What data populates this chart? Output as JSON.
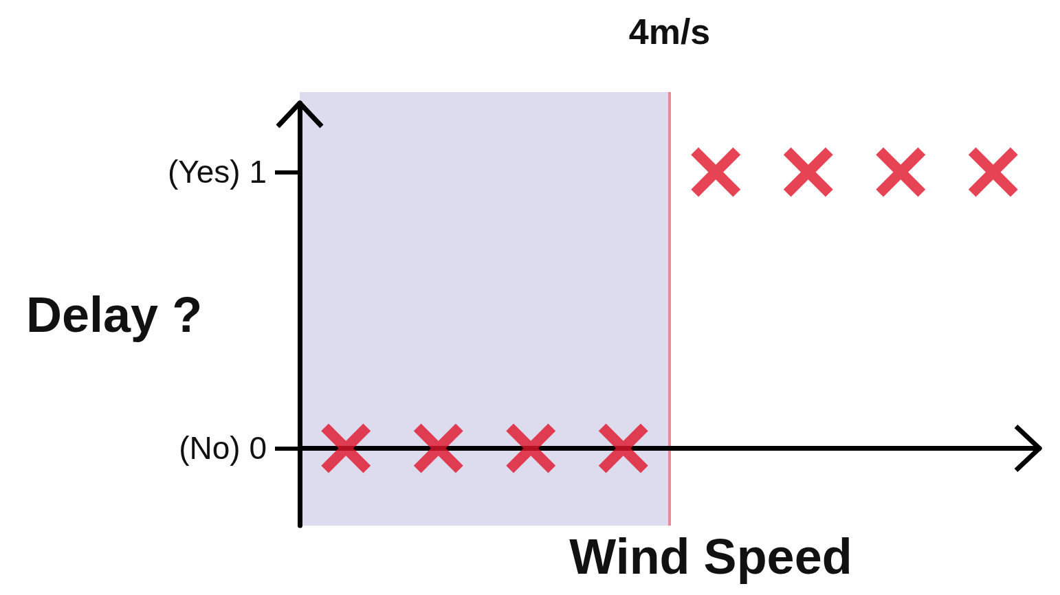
{
  "chart_data": {
    "type": "scatter",
    "xlabel": "Wind Speed",
    "ylabel": "Delay ?",
    "categories": [
      null,
      null,
      null,
      null,
      null,
      null,
      null,
      null
    ],
    "series": [
      {
        "color": "#e0142a",
        "values": [
          0,
          0,
          0,
          0,
          1,
          1,
          1,
          1
        ]
      }
    ],
    "ylim": [
      -0.28,
      1.25
    ],
    "yticks": [
      {
        "value": 0,
        "label": "(No) 0"
      },
      {
        "value": 1,
        "label": "(Yes) 1"
      }
    ],
    "tick_labels": "y",
    "marker": "cross",
    "annotations": [
      "4m/s"
    ]
  }
}
